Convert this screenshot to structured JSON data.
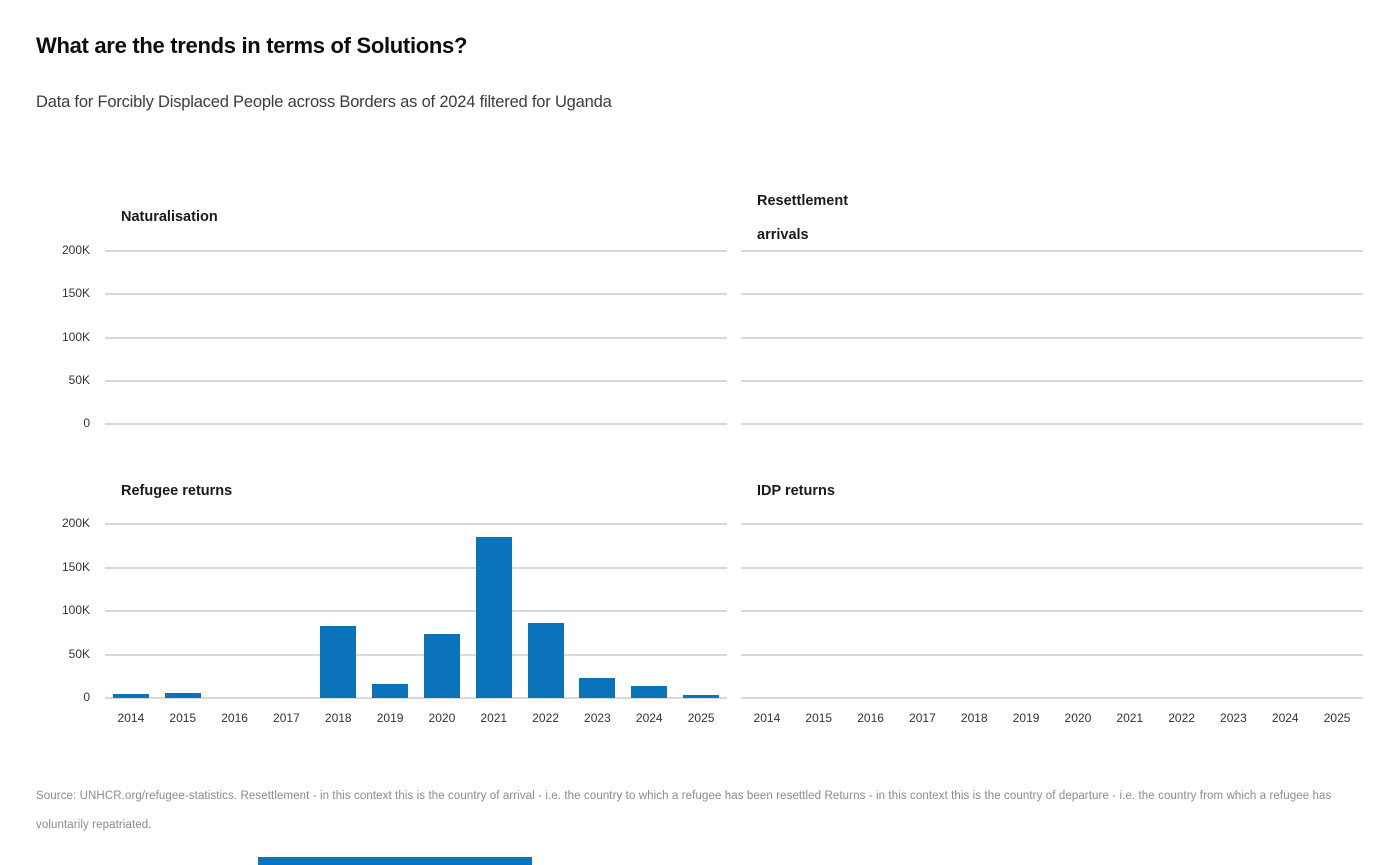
{
  "header": {
    "title": "What are the trends in terms of Solutions?",
    "subtitle": "Data for Forcibly Displaced People across Borders as of 2024 filtered for Uganda"
  },
  "colors": {
    "bar": "#0a73b9",
    "gridline": "#d9d9d9",
    "panel_title": "#1a1a1a",
    "axis_label": "#333333",
    "footer_text": "#8b8b8b"
  },
  "chart_data": {
    "type": "bar",
    "layout": "2x2-small-multiples",
    "categories": [
      "2014",
      "2015",
      "2016",
      "2017",
      "2018",
      "2019",
      "2020",
      "2021",
      "2022",
      "2023",
      "2024",
      "2025"
    ],
    "ylim": [
      0,
      200000
    ],
    "ytick_labels": [
      "200K",
      "150K",
      "100K",
      "50K",
      "0"
    ],
    "grid": true,
    "panels": [
      {
        "id": "naturalisation",
        "title_lines": [
          "Naturalisation"
        ],
        "values": [
          0,
          0,
          0,
          0,
          0,
          0,
          0,
          0,
          0,
          0,
          0,
          0
        ],
        "show_y_labels": true,
        "show_x_labels": false
      },
      {
        "id": "resettlement-arrivals",
        "title_lines": [
          "Resettlement",
          "arrivals"
        ],
        "values": [
          0,
          0,
          0,
          0,
          0,
          0,
          0,
          0,
          0,
          0,
          0,
          0
        ],
        "show_y_labels": false,
        "show_x_labels": false
      },
      {
        "id": "refugee-returns",
        "title_lines": [
          "Refugee returns"
        ],
        "values": [
          5000,
          6000,
          0,
          0,
          83000,
          16000,
          74000,
          185000,
          86000,
          23000,
          14000,
          3000
        ],
        "show_y_labels": true,
        "show_x_labels": true
      },
      {
        "id": "idp-returns",
        "title_lines": [
          "IDP returns"
        ],
        "values": [
          0,
          0,
          0,
          0,
          0,
          0,
          0,
          0,
          0,
          0,
          0,
          0
        ],
        "show_y_labels": false,
        "show_x_labels": true
      }
    ]
  },
  "footer": {
    "source_text": "Source: UNHCR.org/refugee-statistics. Resettlement - in this context this is the country of arrival - i.e. the country to which a refugee has been resettled Returns - in this context this is the country of departure - i.e. the country from which a refugee has voluntarily repatriated."
  }
}
